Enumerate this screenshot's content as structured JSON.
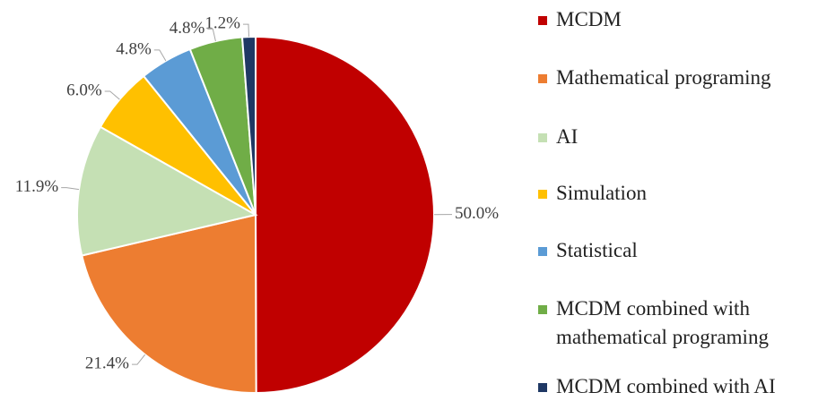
{
  "chart_data": {
    "type": "pie",
    "categories": [
      "MCDM",
      "Mathematical programing",
      "AI",
      "Simulation",
      "Statistical",
      "MCDM combined with mathematical programing",
      "MCDM combined with AI"
    ],
    "values": [
      50,
      21.4,
      11.9,
      6,
      4.8,
      4.8,
      1.2
    ],
    "value_labels": [
      "50.0%",
      "21.4%",
      "11.9%",
      "6.0%",
      "4.8%",
      "4.8%",
      "1.2%"
    ],
    "colors": [
      "#c00000",
      "#ed7d31",
      "#c5e0b4",
      "#ffc000",
      "#5b9bd5",
      "#70ad47",
      "#1f3864"
    ],
    "legend": "right"
  }
}
